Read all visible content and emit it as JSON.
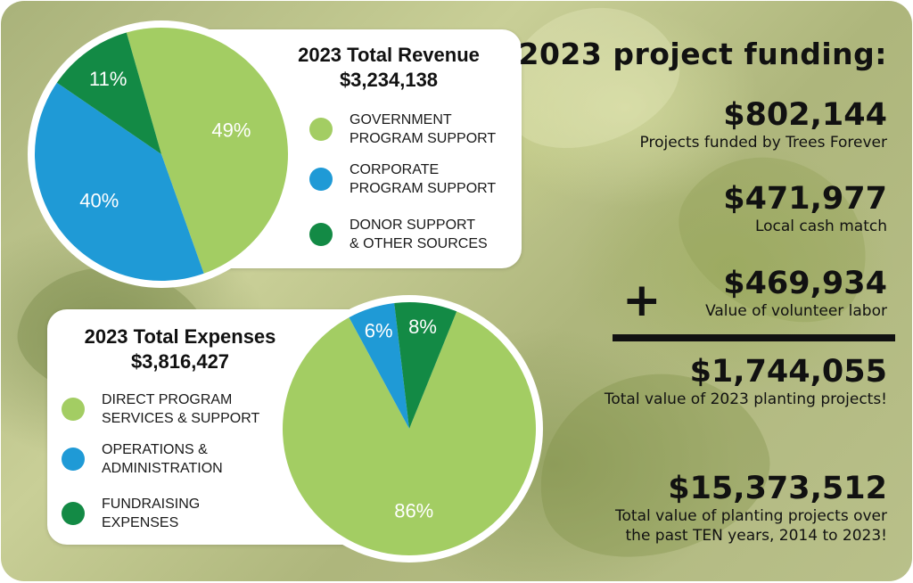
{
  "chart_data": [
    {
      "type": "pie",
      "title": "2023 Total Revenue",
      "subtitle": "$3,234,138",
      "categories": [
        "GOVERNMENT PROGRAM SUPPORT",
        "CORPORATE PROGRAM SUPPORT",
        "DONOR SUPPORT & OTHER SOURCES"
      ],
      "legend_lines": [
        [
          "GOVERNMENT",
          "PROGRAM SUPPORT"
        ],
        [
          "CORPORATE",
          "PROGRAM SUPPORT"
        ],
        [
          "DONOR SUPPORT",
          "& OTHER SOURCES"
        ]
      ],
      "values": [
        49,
        40,
        11
      ],
      "labels": [
        "49%",
        "40%",
        "11%"
      ],
      "colors": [
        "#a3cd63",
        "#1f9ad6",
        "#138a45"
      ],
      "start_angle_deg": -16,
      "legend_position": "right"
    },
    {
      "type": "pie",
      "title": "2023 Total Expenses",
      "subtitle": "$3,816,427",
      "categories": [
        "DIRECT PROGRAM SERVICES & SUPPORT",
        "OPERATIONS & ADMINISTRATION",
        "FUNDRAISING EXPENSES"
      ],
      "legend_lines": [
        [
          "DIRECT PROGRAM",
          "SERVICES & SUPPORT"
        ],
        [
          "OPERATIONS &",
          "ADMINISTRATION"
        ],
        [
          "FUNDRAISING",
          "EXPENSES"
        ]
      ],
      "values": [
        86,
        6,
        8
      ],
      "labels": [
        "86%",
        "6%",
        "8%"
      ],
      "colors": [
        "#a3cd63",
        "#1f9ad6",
        "#138a45"
      ],
      "start_angle_deg": 22,
      "legend_position": "left"
    }
  ],
  "funding": {
    "heading": "2023 project funding:",
    "items": [
      {
        "amount": "$802,144",
        "desc": "Projects funded by Trees Forever"
      },
      {
        "amount": "$471,977",
        "desc": "Local cash match"
      },
      {
        "amount": "$469,934",
        "desc": "Value of volunteer labor"
      },
      {
        "amount": "$1,744,055",
        "desc": "Total value of 2023 planting projects!"
      },
      {
        "amount": "$15,373,512",
        "desc": "Total value of planting projects over\nthe past TEN years, 2014 to 2023!"
      }
    ],
    "plus_sign": "+"
  }
}
